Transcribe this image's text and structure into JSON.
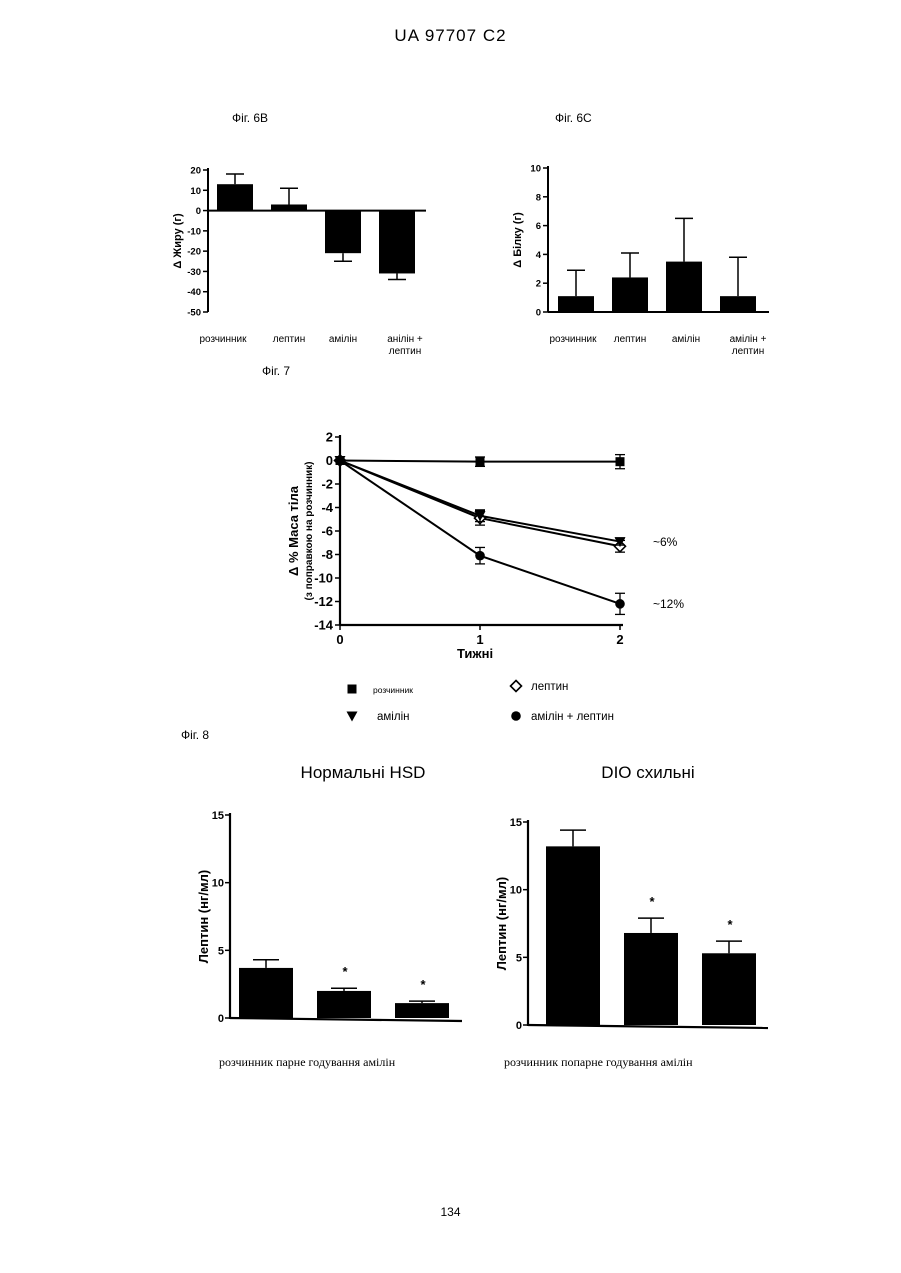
{
  "header": "UA   97707   C2",
  "page_number": "134",
  "fig6b_label": "Фіг. 6В",
  "fig6c_label": "Фіг. 6С",
  "fig7_label": "Фіг. 7",
  "fig8_label": "Фіг. 8",
  "fig7_annotations": [
    "~6%",
    "~12%"
  ],
  "fig7_legend": [
    "розчинник",
    "лептин",
    "амілін",
    "амілін + лептин"
  ],
  "chart_data": [
    {
      "id": "fig6b",
      "type": "bar",
      "ylabel": "Δ Жиру (г)",
      "ylim": [
        -50,
        20
      ],
      "yticks": [
        "20",
        "10",
        "0",
        "-10",
        "-20",
        "-30",
        "-40",
        "-50"
      ],
      "ytick_values": [
        20,
        10,
        0,
        -10,
        -20,
        -30,
        -40,
        -50
      ],
      "categories": [
        "розчинник",
        "лептин",
        "амілін",
        "анілін +\nлептин"
      ],
      "values": [
        13,
        3,
        -21,
        -31
      ],
      "errors": [
        5,
        8,
        4,
        3
      ]
    },
    {
      "id": "fig6c",
      "type": "bar",
      "ylabel": "Δ Білку (г)",
      "ylim": [
        0,
        10
      ],
      "yticks": [
        "10",
        "8",
        "6",
        "4",
        "2",
        "0"
      ],
      "ytick_values": [
        10,
        8,
        6,
        4,
        2,
        0
      ],
      "categories": [
        "розчинник",
        "лептин",
        "амілін",
        "амілін +\nлептин"
      ],
      "values": [
        1.1,
        2.4,
        3.5,
        1.1
      ],
      "errors": [
        1.8,
        1.7,
        3.0,
        2.7
      ]
    },
    {
      "id": "fig7",
      "type": "line",
      "ylabel": "Δ %   Маса тіла",
      "ylabel2": "(з поправкою на розчинник)",
      "xlabel": "Тижні",
      "x": [
        0,
        1,
        2
      ],
      "xticks": [
        "0",
        "1",
        "2"
      ],
      "ylim": [
        -14,
        2
      ],
      "yticks": [
        "2",
        "0",
        "-2",
        "-4",
        "-6",
        "-8",
        "-10",
        "-12",
        "-14"
      ],
      "ytick_values": [
        2,
        0,
        -2,
        -4,
        -6,
        -8,
        -10,
        -12,
        -14
      ],
      "series": [
        {
          "name": "розчинник",
          "marker": "square",
          "values": [
            0,
            -0.1,
            -0.1
          ],
          "errors": [
            0,
            0.4,
            0.6
          ]
        },
        {
          "name": "лептин",
          "marker": "diamond-open",
          "values": [
            0,
            -4.9,
            -7.3
          ],
          "errors": [
            0,
            0.6,
            0.5
          ]
        },
        {
          "name": "амілін",
          "marker": "triangle-down",
          "values": [
            0,
            -4.7,
            -6.9
          ],
          "errors": [
            0,
            0.5,
            0.3
          ]
        },
        {
          "name": "амілін + лептин",
          "marker": "circle",
          "values": [
            0,
            -8.1,
            -12.2
          ],
          "errors": [
            0,
            0.7,
            0.9
          ]
        }
      ]
    },
    {
      "id": "fig8a",
      "type": "bar",
      "title": "Нормальні HSD",
      "ylabel": "Лептин (нг/мл)",
      "ylim": [
        0,
        15
      ],
      "yticks": [
        "15",
        "10",
        "5",
        "0"
      ],
      "ytick_values": [
        15,
        10,
        5,
        0
      ],
      "categories": [
        "розчинник",
        "парне годування",
        "амілін"
      ],
      "values": [
        3.7,
        2.0,
        1.1
      ],
      "errors": [
        0.6,
        0.2,
        0.15
      ],
      "significance": [
        "",
        "*",
        "*"
      ]
    },
    {
      "id": "fig8b",
      "type": "bar",
      "title": "DIO схильні",
      "ylabel": "Лептин (нг/мл)",
      "ylim": [
        0,
        15
      ],
      "yticks": [
        "15",
        "10",
        "5",
        "0"
      ],
      "ytick_values": [
        15,
        10,
        5,
        0
      ],
      "categories": [
        "розчинник",
        "попарне годування",
        "амілін"
      ],
      "values": [
        13.2,
        6.8,
        5.3
      ],
      "errors": [
        1.2,
        1.1,
        0.9
      ],
      "significance": [
        "",
        "*",
        "*"
      ]
    }
  ]
}
